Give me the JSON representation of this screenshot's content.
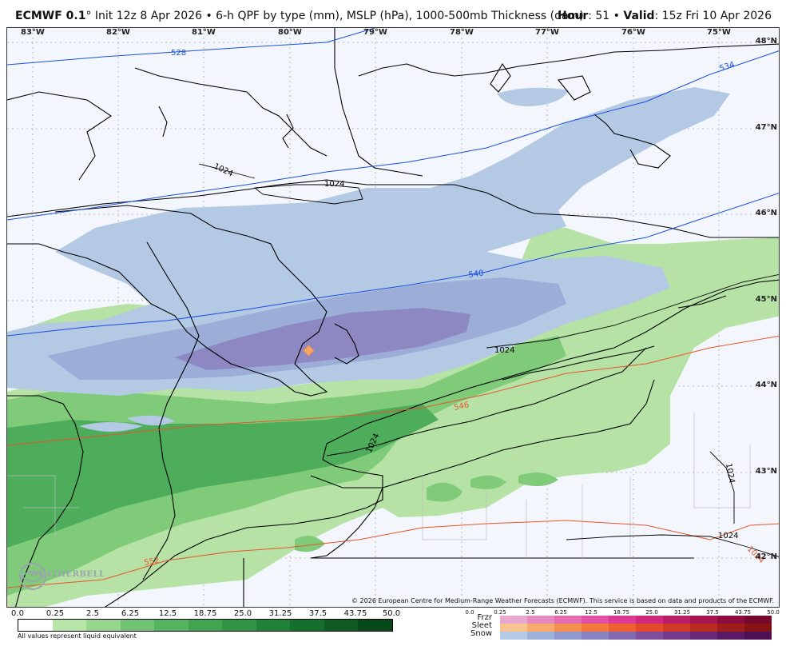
{
  "header": {
    "model": "ECMWF 0.1",
    "degree": "°",
    "description": " Init 12z 8 Apr 2026 • 6-h QPF by type (mm), MSLP (hPa), 1000-500mb Thickness (dam)",
    "hour_label": "Hour",
    "hour_value": ": 51 • ",
    "valid_label": "Valid",
    "valid_value": ": 15z Fri 10 Apr 2026"
  },
  "map": {
    "lon_labels": [
      "83°W",
      "82°W",
      "81°W",
      "80°W",
      "79°W",
      "78°W",
      "77°W",
      "76°W",
      "75°W"
    ],
    "lat_labels": [
      "48°N",
      "47°N",
      "46°N",
      "45°N",
      "44°N",
      "43°N",
      "42°N"
    ],
    "contour_labels": {
      "thk_528": "528",
      "thk_534": "534",
      "thk_540": "540",
      "thk_546": "546",
      "thk_552": "552",
      "mslp_a": "1024",
      "mslp_b": "1024",
      "mslp_c": "1024",
      "mslp_d": "1024",
      "mslp_e": "1024",
      "mslp_f": "1024",
      "mslp_g": "1024"
    },
    "copyright": "© 2026 European Centre for Medium-Range Weather Forecasts (ECMWF). This service is based on data and products of the ECMWF.",
    "logo_text": "WEATHERBELL",
    "colors": {
      "background": "#f3f6fc",
      "snow_light": "#b3c9e4",
      "snow_mid": "#9cadd8",
      "snow_heavy": "#8e88c2",
      "rain_light": "#b6e3a5",
      "rain_mid": "#7fcb7a",
      "rain_heavy": "#4dad5a",
      "rain_core": "#38a04c",
      "thickness_cold": "#1a4fe0",
      "thickness_warm": "#e8552b",
      "isobar": "#000000"
    }
  },
  "legend": {
    "rain_ticks": [
      "0.0",
      "0.25",
      "2.5",
      "6.25",
      "12.5",
      "18.75",
      "25.0",
      "31.25",
      "37.5",
      "43.75",
      "50.0"
    ],
    "rain_colors": [
      "#ffffff",
      "#b7e6a8",
      "#97d68d",
      "#72c472",
      "#56b35e",
      "#40a450",
      "#2f9443",
      "#208237",
      "#15702d",
      "#0d5d23",
      "#064a19"
    ],
    "rain_note": "All values represent liquid equivalent",
    "ptype_ticks": [
      "0.0",
      "0.25",
      "2.5",
      "6.25",
      "12.5",
      "18.75",
      "25.0",
      "31.25",
      "37.5",
      "43.75",
      "50.0"
    ],
    "ptype_labels": [
      "Frzr",
      "Sleet",
      "Snow"
    ],
    "frzr_colors": [
      "#e8a8cf",
      "#e58ac0",
      "#e46db2",
      "#e150a3",
      "#dc3a93",
      "#cf2a7e",
      "#bb1f67",
      "#a51652",
      "#8d0e3e",
      "#760a2d"
    ],
    "sleet_colors": [
      "#f7c38e",
      "#f7aa6c",
      "#f5914f",
      "#f37a3a",
      "#ee6030",
      "#e24a2a",
      "#cf3925",
      "#b82b20",
      "#9f1e1a",
      "#861414"
    ],
    "snow_colors": [
      "#b4cae6",
      "#9eb1dc",
      "#8f98cf",
      "#8a83c2",
      "#8468b1",
      "#7f4f9e",
      "#763a8a",
      "#6a2877",
      "#5b1a63",
      "#4d1052"
    ]
  }
}
